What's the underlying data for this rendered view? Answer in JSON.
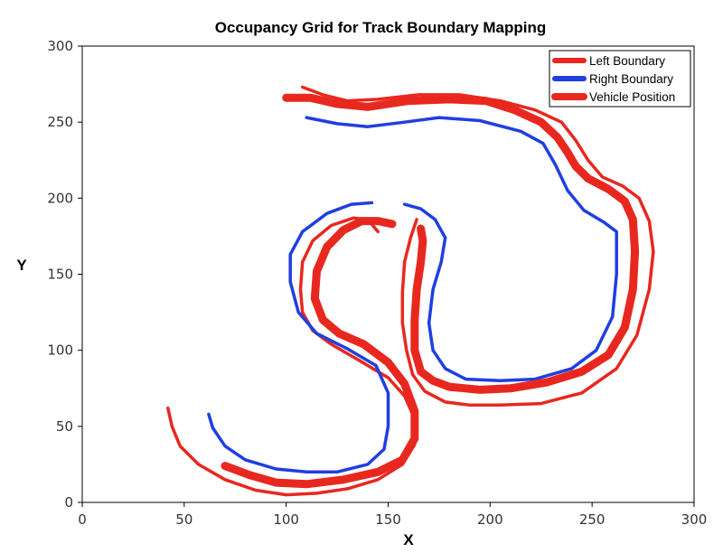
{
  "chart_data": {
    "type": "line",
    "title": "Occupancy Grid for Track Boundary Mapping",
    "xlabel": "X",
    "ylabel": "Y",
    "xlim": [
      0,
      300
    ],
    "ylim": [
      0,
      300
    ],
    "xticks": [
      0,
      50,
      100,
      150,
      200,
      250,
      300
    ],
    "yticks": [
      0,
      50,
      100,
      150,
      200,
      250,
      300
    ],
    "grid": false,
    "legend_position": "top-right",
    "series": [
      {
        "name": "Left Boundary",
        "color": "#e8281f",
        "style": "thin",
        "segments": [
          [
            [
              108,
              273
            ],
            [
              118,
              268
            ],
            [
              130,
              264
            ],
            [
              145,
              265
            ],
            [
              165,
              268
            ],
            [
              185,
              268
            ],
            [
              205,
              264
            ],
            [
              222,
              258
            ],
            [
              235,
              250
            ],
            [
              242,
              238
            ],
            [
              248,
              225
            ],
            [
              255,
              214
            ],
            [
              265,
              208
            ],
            [
              273,
              200
            ],
            [
              278,
              185
            ],
            [
              280,
              165
            ],
            [
              278,
              140
            ],
            [
              272,
              110
            ],
            [
              262,
              88
            ],
            [
              245,
              72
            ],
            [
              225,
              65
            ],
            [
              205,
              64
            ],
            [
              190,
              64
            ],
            [
              178,
              66
            ],
            [
              168,
              73
            ],
            [
              162,
              84
            ],
            [
              159,
              100
            ],
            [
              157,
              118
            ],
            [
              157,
              138
            ],
            [
              158,
              158
            ],
            [
              161,
              174
            ],
            [
              164,
              186
            ]
          ],
          [
            [
              145,
              178
            ],
            [
              140,
              186
            ],
            [
              133,
              187
            ],
            [
              122,
              182
            ],
            [
              113,
              172
            ],
            [
              108,
              158
            ],
            [
              107,
              140
            ],
            [
              108,
              125
            ],
            [
              113,
              113
            ],
            [
              122,
              104
            ],
            [
              135,
              94
            ],
            [
              150,
              82
            ],
            [
              158,
              70
            ],
            [
              163,
              55
            ],
            [
              163,
              38
            ],
            [
              157,
              25
            ],
            [
              145,
              15
            ],
            [
              130,
              9
            ],
            [
              115,
              6
            ],
            [
              100,
              5
            ],
            [
              85,
              8
            ],
            [
              70,
              15
            ],
            [
              57,
              25
            ],
            [
              48,
              37
            ],
            [
              44,
              50
            ],
            [
              42,
              62
            ]
          ]
        ]
      },
      {
        "name": "Right Boundary",
        "color": "#1f3fe0",
        "style": "thin",
        "segments": [
          [
            [
              110,
              253
            ],
            [
              125,
              249
            ],
            [
              140,
              247
            ],
            [
              158,
              250
            ],
            [
              175,
              253
            ],
            [
              195,
              251
            ],
            [
              215,
              244
            ],
            [
              226,
              236
            ],
            [
              232,
              222
            ],
            [
              238,
              205
            ],
            [
              246,
              192
            ],
            [
              256,
              184
            ],
            [
              262,
              178
            ],
            [
              262,
              150
            ],
            [
              260,
              122
            ],
            [
              252,
              100
            ],
            [
              240,
              88
            ],
            [
              222,
              81
            ],
            [
              205,
              80
            ],
            [
              188,
              81
            ],
            [
              178,
              88
            ],
            [
              172,
              100
            ],
            [
              170,
              118
            ],
            [
              172,
              140
            ],
            [
              176,
              158
            ],
            [
              178,
              174
            ],
            [
              173,
              186
            ],
            [
              166,
              193
            ],
            [
              158,
              196
            ]
          ],
          [
            [
              142,
              197
            ],
            [
              132,
              196
            ],
            [
              120,
              190
            ],
            [
              108,
              178
            ],
            [
              102,
              163
            ],
            [
              102,
              145
            ],
            [
              106,
              125
            ],
            [
              115,
              111
            ],
            [
              130,
              101
            ],
            [
              144,
              90
            ],
            [
              150,
              72
            ],
            [
              150,
              50
            ],
            [
              148,
              35
            ],
            [
              140,
              25
            ],
            [
              125,
              20
            ],
            [
              110,
              20
            ],
            [
              95,
              22
            ],
            [
              80,
              28
            ],
            [
              70,
              37
            ],
            [
              64,
              49
            ],
            [
              62,
              58
            ]
          ]
        ]
      },
      {
        "name": "Vehicle Position",
        "color": "#e8281f",
        "style": "thick",
        "segments": [
          [
            [
              100,
              266
            ],
            [
              112,
              266
            ],
            [
              125,
              262
            ],
            [
              140,
              260
            ],
            [
              160,
              264
            ],
            [
              180,
              265
            ],
            [
              198,
              264
            ],
            [
              212,
              258
            ],
            [
              225,
              250
            ],
            [
              233,
              240
            ],
            [
              238,
              230
            ],
            [
              242,
              221
            ],
            [
              248,
              213
            ],
            [
              258,
              206
            ],
            [
              266,
              198
            ],
            [
              270,
              186
            ],
            [
              271,
              165
            ],
            [
              270,
              140
            ],
            [
              266,
              115
            ],
            [
              258,
              97
            ],
            [
              245,
              86
            ],
            [
              228,
              79
            ],
            [
              210,
              75
            ],
            [
              195,
              74
            ],
            [
              180,
              76
            ],
            [
              172,
              80
            ],
            [
              166,
              86
            ],
            [
              163,
              100
            ],
            [
              163,
              120
            ],
            [
              164,
              140
            ],
            [
              166,
              158
            ],
            [
              167,
              172
            ],
            [
              166,
              180
            ]
          ],
          [
            [
              152,
              183
            ],
            [
              145,
              185
            ],
            [
              137,
              185
            ],
            [
              128,
              179
            ],
            [
              120,
              168
            ],
            [
              115,
              152
            ],
            [
              114,
              134
            ],
            [
              118,
              120
            ],
            [
              126,
              111
            ],
            [
              138,
              104
            ],
            [
              150,
              92
            ],
            [
              158,
              78
            ],
            [
              163,
              60
            ],
            [
              163,
              42
            ],
            [
              157,
              28
            ],
            [
              145,
              20
            ],
            [
              128,
              15
            ],
            [
              110,
              12
            ],
            [
              95,
              13
            ],
            [
              82,
              18
            ],
            [
              70,
              24
            ]
          ]
        ]
      }
    ]
  }
}
